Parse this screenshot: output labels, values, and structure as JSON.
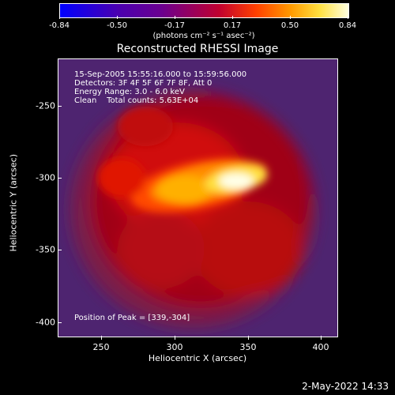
{
  "colorbar": {
    "tick_labels": [
      "-0.84",
      "-0.50",
      "-0.17",
      "0.17",
      "0.50",
      "0.84"
    ],
    "units": "(photons cm⁻² s⁻¹ asec⁻²)"
  },
  "title": "Reconstructed RHESSI Image",
  "info": {
    "time": "15-Sep-2005 15:55:16.000 to 15:59:56.000",
    "detectors": "Detectors: 3F 4F 5F 6F 7F 8F, Att 0",
    "energy": "Energy Range: 3.0 - 6.0 keV",
    "clean": "Clean    Total counts: 5.63E+04",
    "peak": "Position of Peak = [339,-304]"
  },
  "axes": {
    "xlabel": "Heliocentric X (arcsec)",
    "ylabel": "Heliocentric Y (arcsec)",
    "xticks": [
      "250",
      "300",
      "350",
      "400"
    ],
    "yticks": [
      "-250",
      "-300",
      "-350",
      "-400"
    ]
  },
  "timestamp": "2-May-2022 14:33",
  "colors": {
    "background": "#000000",
    "foreground": "#ffffff"
  }
}
